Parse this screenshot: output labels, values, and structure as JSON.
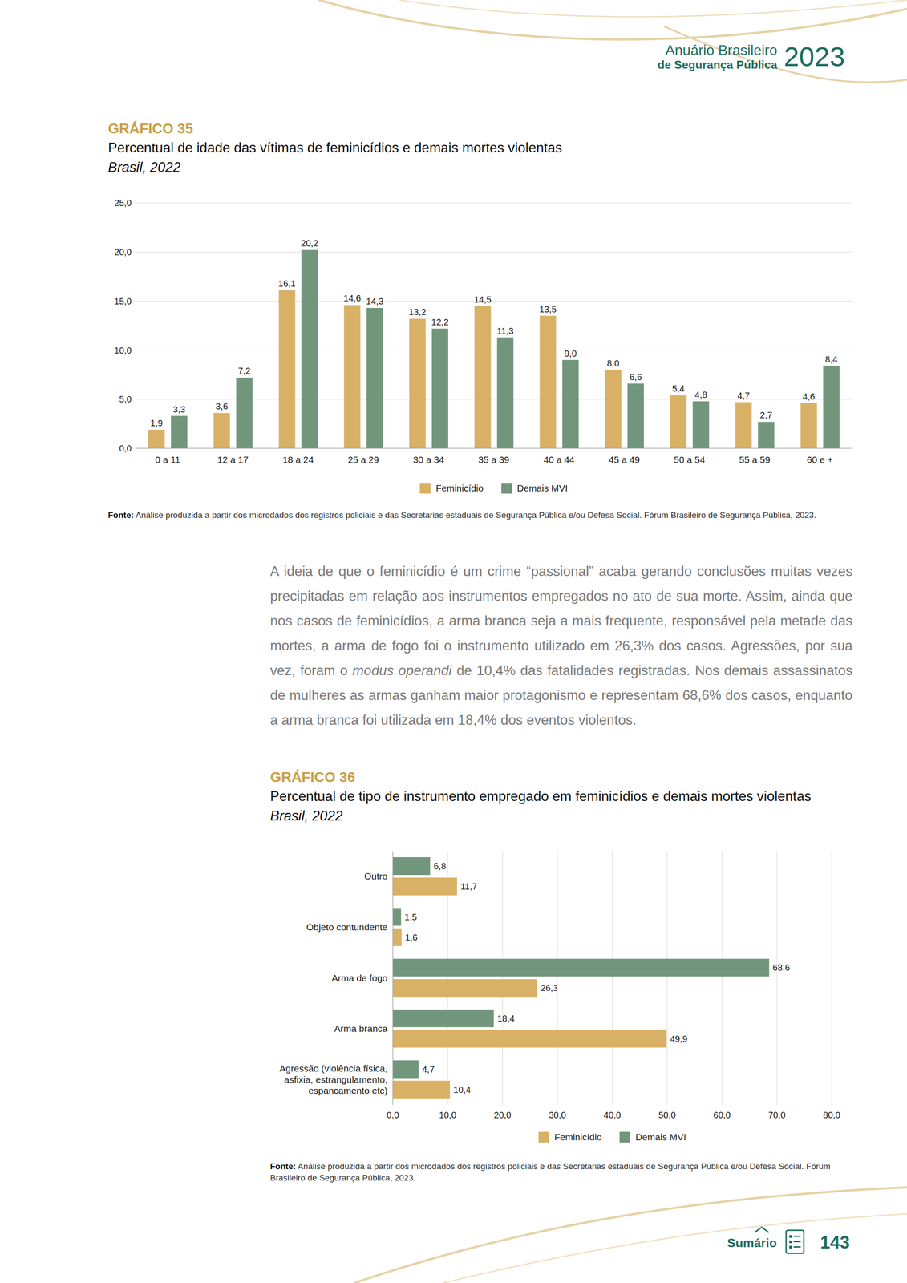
{
  "header": {
    "title_line1": "Anuário Brasileiro",
    "title_line2": "de Segurança Pública",
    "year": "2023"
  },
  "chart_data": [
    {
      "type": "bar",
      "label": "GRÁFICO 35",
      "title": "Percentual de idade das vítimas de feminicídios e demais mortes violentas",
      "subtitle": "Brasil, 2022",
      "categories": [
        "0 a 11",
        "12 a 17",
        "18 a 24",
        "25 a 29",
        "30 a 34",
        "35 a 39",
        "40 a 44",
        "45 a 49",
        "50 a 54",
        "55 a 59",
        "60 e +"
      ],
      "series": [
        {
          "name": "Feminicídio",
          "color": "#d9b166",
          "values": [
            1.9,
            3.6,
            16.1,
            14.6,
            13.2,
            14.5,
            13.5,
            8.0,
            5.4,
            4.7,
            4.6
          ],
          "value_labels": [
            "1,9",
            "3,6",
            "16,1",
            "14,6",
            "13,2",
            "14,5",
            "13,5",
            "8,0",
            "5,4",
            "4,7",
            "4,6"
          ]
        },
        {
          "name": "Demais MVI",
          "color": "#72967c",
          "values": [
            3.3,
            7.2,
            20.2,
            14.3,
            12.2,
            11.3,
            9.0,
            6.6,
            4.8,
            2.7,
            8.4
          ],
          "value_labels": [
            "3,3",
            "7,2",
            "20,2",
            "14,3",
            "12,2",
            "11,3",
            "9,0",
            "6,6",
            "4,8",
            "2,7",
            "8,4"
          ]
        }
      ],
      "ylim": [
        0,
        25
      ],
      "yticks": [
        {
          "value": 0,
          "label": "0,0"
        },
        {
          "value": 5,
          "label": "5,0"
        },
        {
          "value": 10,
          "label": "10,0"
        },
        {
          "value": 15,
          "label": "15,0"
        },
        {
          "value": 20,
          "label": "20,0"
        },
        {
          "value": 25,
          "label": "25,0"
        }
      ],
      "grid": true,
      "data_labels": true,
      "legend": "bottom",
      "source_label": "Fonte:",
      "source": "Análise produzida a partir dos microdados dos registros policiais e das Secretarias estaduais de Segurança Pública e/ou Defesa Social. Fórum Brasileiro de Segurança Pública, 2023."
    },
    {
      "type": "bar",
      "orientation": "horizontal",
      "label": "GRÁFICO 36",
      "title": "Percentual de tipo de instrumento empregado em feminicídios e demais mortes violentas",
      "subtitle": "Brasil, 2022",
      "categories": [
        "Outro",
        "Objeto contundente",
        "Arma de fogo",
        "Arma branca",
        "Agressão (violência física, asfixia, estrangulamento, espancamento etc)"
      ],
      "series": [
        {
          "name": "Feminicídio",
          "color": "#d9b166",
          "values": [
            11.7,
            1.6,
            26.3,
            49.9,
            10.4
          ],
          "value_labels": [
            "11,7",
            "1,6",
            "26,3",
            "49,9",
            "10,4"
          ]
        },
        {
          "name": "Demais MVI",
          "color": "#72967c",
          "values": [
            6.8,
            1.5,
            68.6,
            18.4,
            4.7
          ],
          "value_labels": [
            "6,8",
            "1,5",
            "68,6",
            "18,4",
            "4,7"
          ]
        }
      ],
      "xlim": [
        0,
        80
      ],
      "xticks": [
        {
          "value": 0,
          "label": "0,0"
        },
        {
          "value": 10,
          "label": "10,0"
        },
        {
          "value": 20,
          "label": "20,0"
        },
        {
          "value": 30,
          "label": "30,0"
        },
        {
          "value": 40,
          "label": "40,0"
        },
        {
          "value": 50,
          "label": "50,0"
        },
        {
          "value": 60,
          "label": "60,0"
        },
        {
          "value": 70,
          "label": "70,0"
        },
        {
          "value": 80,
          "label": "80,0"
        }
      ],
      "grid": true,
      "data_labels": true,
      "legend": "bottom",
      "source_label": "Fonte:",
      "source": "Análise produzida a partir dos microdados dos registros policiais e das Secretarias estaduais de Segurança Pública e/ou Defesa Social. Fórum Brasileiro de Segurança Pública, 2023."
    }
  ],
  "paragraph": [
    {
      "text": "A ideia de que o feminicídio é um crime “passional” acaba gerando conclusões muitas vezes precipitadas em relação aos instrumentos empregados no ato de sua morte. Assim, ainda que nos casos de feminicídios, a arma branca seja a mais frequente, responsável pela metade das mortes, a arma de fogo foi o instrumento utilizado em 26,3% dos casos. Agressões, por sua vez, foram o ",
      "italic": false
    },
    {
      "text": "modus operandi",
      "italic": true
    },
    {
      "text": " de 10,4% das fatalidades registradas. Nos demais assassinatos de mulheres as armas ganham maior protagonismo e representam 68,6% dos casos, enquanto a arma branca foi utilizada em 18,4% dos eventos violentos.",
      "italic": false
    }
  ],
  "footer": {
    "link": "Sumário",
    "page": "143"
  }
}
